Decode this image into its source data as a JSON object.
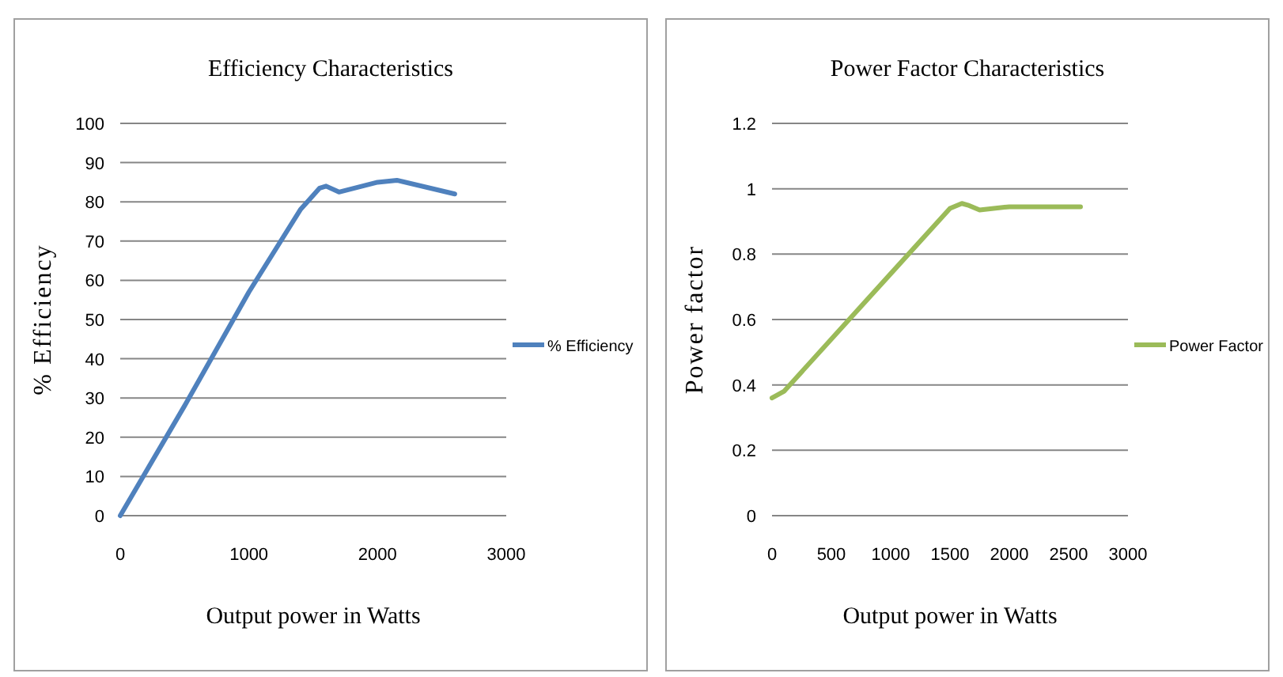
{
  "chart_data": [
    {
      "type": "line",
      "title": "Efficiency Characteristics",
      "xlabel": "Output power in Watts",
      "ylabel": "% Efficiency",
      "xlim": [
        0,
        3000
      ],
      "xticks": [
        0,
        1000,
        2000,
        3000
      ],
      "ylim": [
        0,
        100
      ],
      "yticks": [
        0,
        10,
        20,
        30,
        40,
        50,
        60,
        70,
        80,
        90,
        100
      ],
      "grid": "y",
      "legend": "right",
      "marker": "none",
      "series": [
        {
          "name": "% Efficiency",
          "color": "#4f81bd",
          "x": [
            0,
            500,
            1000,
            1400,
            1550,
            1600,
            1700,
            2000,
            2150,
            2600
          ],
          "values": [
            0,
            28,
            57,
            78,
            83.5,
            84,
            82.5,
            85,
            85.5,
            82
          ]
        }
      ]
    },
    {
      "type": "line",
      "title": "Power Factor Characteristics",
      "xlabel": "Output power in Watts",
      "ylabel": "Power factor",
      "xlim": [
        0,
        3000
      ],
      "xticks": [
        0,
        500,
        1000,
        1500,
        2000,
        2500,
        3000
      ],
      "ylim": [
        0,
        1.2
      ],
      "yticks": [
        0,
        0.2,
        0.4,
        0.6,
        0.8,
        1,
        1.2
      ],
      "grid": "y",
      "legend": "right",
      "marker": "none",
      "series": [
        {
          "name": "Power Factor",
          "color": "#9bbb59",
          "x": [
            0,
            100,
            500,
            1000,
            1500,
            1600,
            1650,
            1750,
            2000,
            2600
          ],
          "values": [
            0.36,
            0.38,
            0.54,
            0.74,
            0.94,
            0.955,
            0.95,
            0.935,
            0.945,
            0.945
          ]
        }
      ]
    }
  ]
}
